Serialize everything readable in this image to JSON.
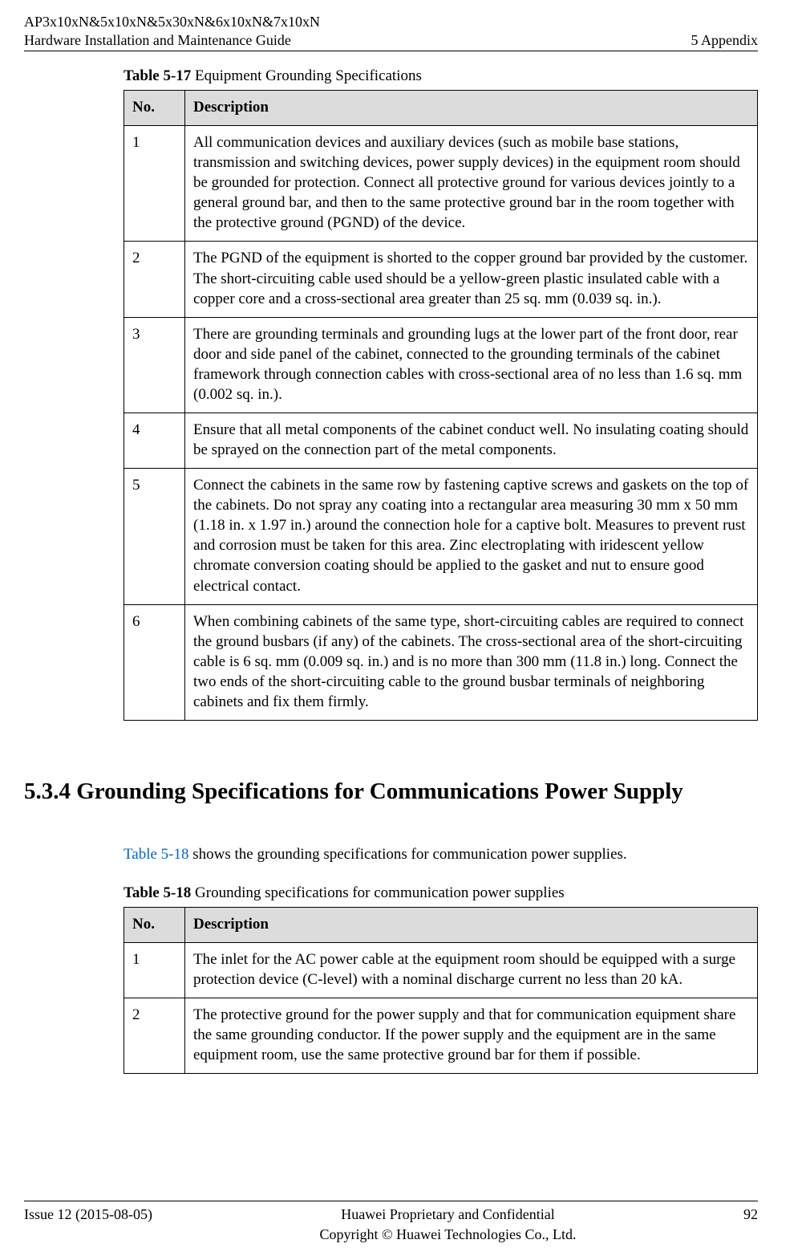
{
  "header": {
    "left1": "AP3x10xN&5x10xN&5x30xN&6x10xN&7x10xN",
    "left2": "Hardware Installation and Maintenance Guide",
    "right": "5 Appendix"
  },
  "table1": {
    "caption_label": "Table 5-17",
    "caption_rest": " Equipment Grounding Specifications",
    "head_no": "No.",
    "head_desc": "Description",
    "rows": [
      {
        "no": "1",
        "desc": "All communication devices and auxiliary devices (such as mobile base stations, transmission and switching devices, power supply devices) in the equipment room should be grounded for protection. Connect all protective ground for various devices jointly to a general ground bar, and then to the same protective ground bar in the room together with the protective ground (PGND) of the device."
      },
      {
        "no": "2",
        "desc": "The PGND of the equipment is shorted to the copper ground bar provided by the customer. The short-circuiting cable used should be a yellow-green plastic insulated cable with a copper core and a cross-sectional area greater than 25 sq. mm (0.039 sq. in.)."
      },
      {
        "no": "3",
        "desc": "There are grounding terminals and grounding lugs at the lower part of the front door, rear door and side panel of the cabinet, connected to the grounding terminals of the cabinet framework through connection cables with cross-sectional area of no less than 1.6 sq. mm (0.002 sq. in.)."
      },
      {
        "no": "4",
        "desc": "Ensure that all metal components of the cabinet conduct well. No insulating coating should be sprayed on the connection part of the metal components."
      },
      {
        "no": "5",
        "desc": "Connect the cabinets in the same row by fastening captive screws and gaskets on the top of the cabinets. Do not spray any coating into a rectangular area measuring 30 mm x 50 mm (1.18 in. x 1.97 in.) around the connection hole for a captive bolt. Measures to prevent rust and corrosion must be taken for this area. Zinc electroplating with iridescent yellow chromate conversion coating should be applied to the gasket and nut to ensure good electrical contact."
      },
      {
        "no": "6",
        "desc": "When combining cabinets of the same type, short-circuiting cables are required to connect the ground busbars (if any) of the cabinets. The cross-sectional area of the short-circuiting cable is 6 sq. mm (0.009 sq. in.) and is no more than 300 mm (11.8 in.) long. Connect the two ends of the short-circuiting cable to the ground busbar terminals of neighboring cabinets and fix them firmly."
      }
    ]
  },
  "section": {
    "title": "5.3.4 Grounding Specifications for Communications Power Supply"
  },
  "intro": {
    "xref": "Table 5-18",
    "rest": " shows the grounding specifications for communication power supplies."
  },
  "table2": {
    "caption_label": "Table 5-18",
    "caption_rest": " Grounding specifications for communication power supplies",
    "head_no": "No.",
    "head_desc": "Description",
    "rows": [
      {
        "no": "1",
        "desc": "The inlet for the AC power cable at the equipment room should be equipped with a surge protection device (C-level) with a nominal discharge current no less than 20 kA."
      },
      {
        "no": "2",
        "desc": "The protective ground for the power supply and that for communication equipment share the same grounding conductor. If the power supply and the equipment are in the same equipment room, use the same protective ground bar for them if possible."
      }
    ]
  },
  "footer": {
    "issue": "Issue 12 (2015-08-05)",
    "mid1": "Huawei Proprietary and Confidential",
    "mid2": "Copyright © Huawei Technologies Co., Ltd.",
    "page": "92"
  }
}
